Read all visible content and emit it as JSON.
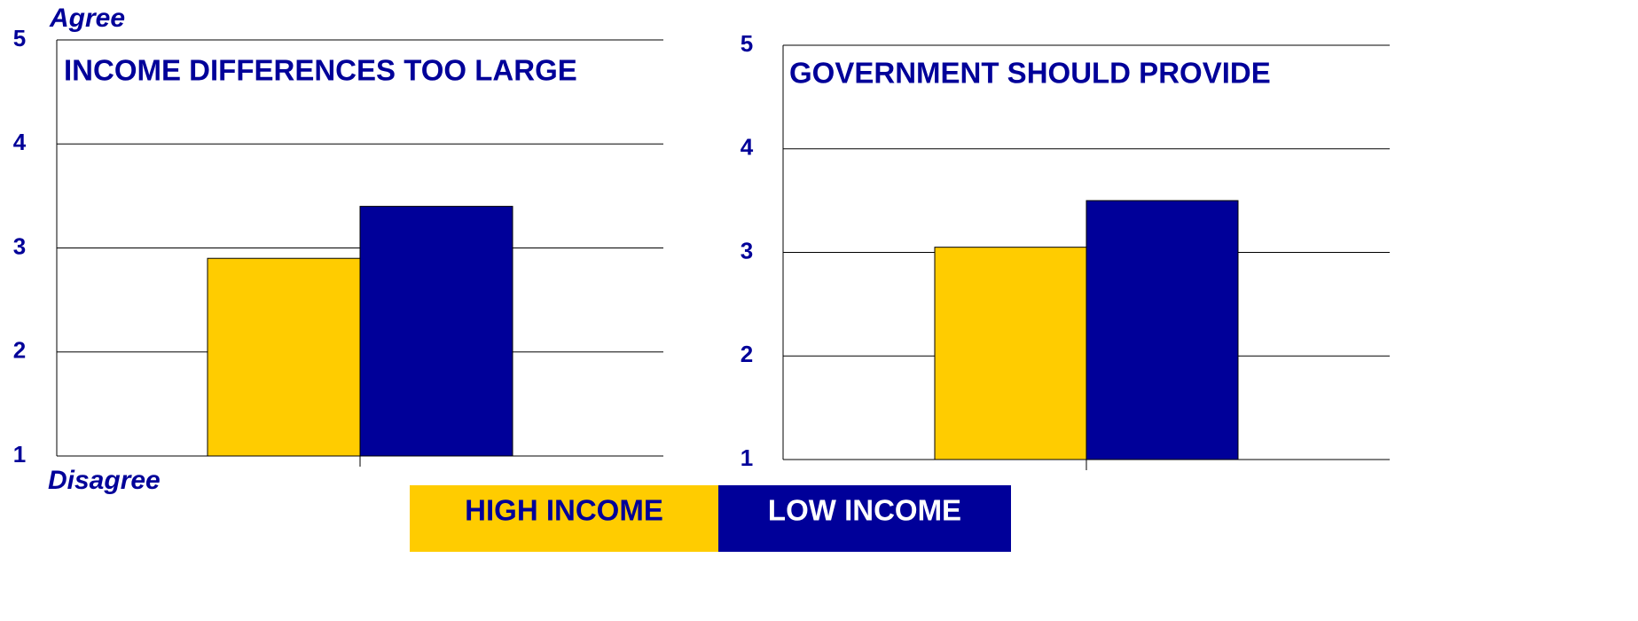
{
  "chart_data": [
    {
      "type": "bar",
      "title": "INCOME DIFFERENCES TOO LARGE",
      "annotations": [
        "Agree",
        "Disagree"
      ],
      "series": [
        {
          "name": "HIGH INCOME",
          "color": "#ffcc00",
          "values": [
            2.9
          ]
        },
        {
          "name": "LOW INCOME",
          "color": "#000099",
          "values": [
            3.4
          ]
        }
      ],
      "ylim": [
        1,
        5
      ],
      "yticks": [
        1,
        2,
        3,
        4,
        5
      ],
      "grid": true
    },
    {
      "type": "bar",
      "title": "GOVERNMENT SHOULD PROVIDE",
      "series": [
        {
          "name": "HIGH INCOME",
          "color": "#ffcc00",
          "values": [
            3.05
          ]
        },
        {
          "name": "LOW INCOME",
          "color": "#000099",
          "values": [
            3.5
          ]
        }
      ],
      "ylim": [
        1,
        5
      ],
      "yticks": [
        1,
        2,
        3,
        4,
        5
      ],
      "grid": true
    }
  ]
}
